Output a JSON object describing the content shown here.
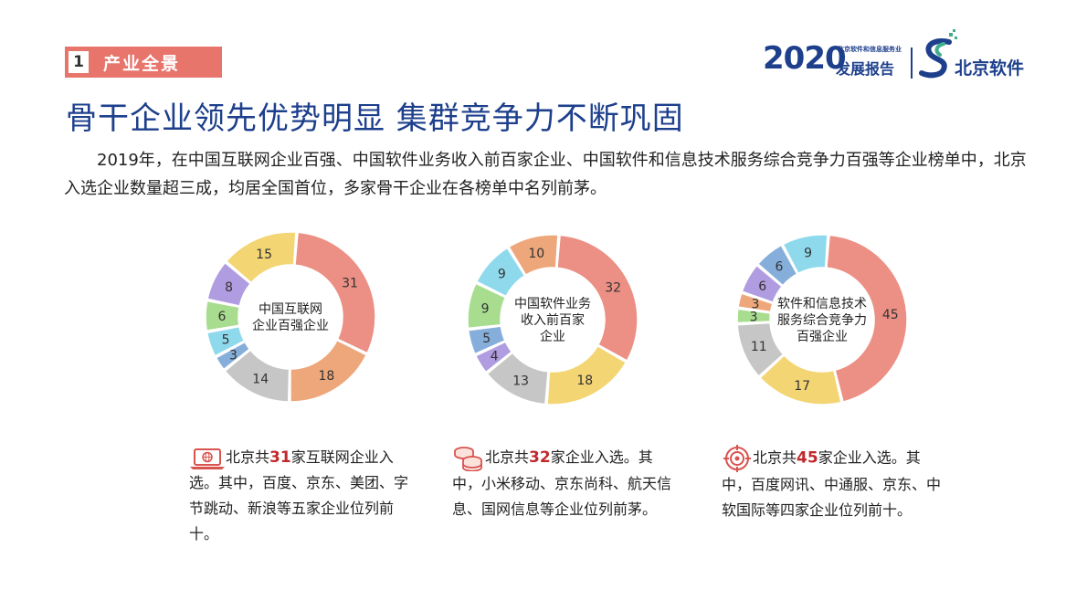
{
  "section": {
    "number": "1",
    "label": "产业全景"
  },
  "logo": {
    "year": "2020",
    "small_text": "北京软件和信息服务业",
    "report": "发展报告",
    "name": "北京软件"
  },
  "headline": "骨干企业领先优势明显  集群竞争力不断巩固",
  "intro": "2019年，在中国互联网企业百强、中国软件业务收入前百家企业、中国软件和信息技术服务综合竞争力百强等企业榜单中，北京入选企业数量超三成，均居全国首位，多家骨干企业在各榜单中名列前茅。",
  "chart_data": [
    {
      "type": "pie",
      "title": "中国互联网企业百强企业",
      "center_lines": [
        "中国互联网",
        "企业百强企业"
      ],
      "values": [
        31,
        18,
        14,
        3,
        5,
        6,
        8,
        15
      ],
      "colors": [
        "#ec8f84",
        "#eda77a",
        "#c6c6c6",
        "#86aedb",
        "#8fd9ec",
        "#a8dd8f",
        "#b09ce0",
        "#f3d574"
      ]
    },
    {
      "type": "pie",
      "title": "中国软件业务收入前百家企业",
      "center_lines": [
        "中国软件业务",
        "收入前百家",
        "企业"
      ],
      "values": [
        32,
        18,
        13,
        4,
        5,
        9,
        9,
        10
      ],
      "colors": [
        "#ec8f84",
        "#f3d574",
        "#c6c6c6",
        "#b09ce0",
        "#86aedb",
        "#a8dd8f",
        "#8fd9ec",
        "#eda77a"
      ]
    },
    {
      "type": "pie",
      "title": "软件和信息技术服务综合竞争力百强企业",
      "center_lines": [
        "软件和信息技术",
        "服务综合竞争力",
        "百强企业"
      ],
      "values": [
        45,
        17,
        11,
        3,
        3,
        6,
        6,
        9
      ],
      "colors": [
        "#ec8f84",
        "#f3d574",
        "#c6c6c6",
        "#a8dd8f",
        "#eda77a",
        "#b09ce0",
        "#86aedb",
        "#8fd9ec"
      ]
    }
  ],
  "captions": [
    {
      "pre": "北京共",
      "num": "31",
      "post": "家互联网企业入选。其中，百度、京东、美团、字节跳动、新浪等五家企业位列前十。",
      "icon": "laptop-icon"
    },
    {
      "pre": "北京共",
      "num": "32",
      "post": "家企业入选。其中，小米移动、京东尚科、航天信息、国网信息等企业位列前茅。",
      "icon": "coins-icon"
    },
    {
      "pre": "北京共",
      "num": "45",
      "post": "家企业入选。其中，百度网讯、中通服、京东、中软国际等四家企业位列前十。",
      "icon": "target-icon"
    }
  ]
}
